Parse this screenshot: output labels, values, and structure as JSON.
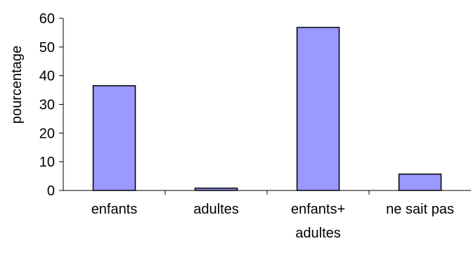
{
  "chart_data": {
    "type": "bar",
    "title": "",
    "xlabel": "",
    "ylabel": "pourcentage",
    "categories": [
      "enfants",
      "adultes",
      "enfants+ adultes",
      "ne sait pas"
    ],
    "values": [
      36.5,
      0.8,
      56.8,
      5.7
    ],
    "ylim": [
      0,
      60
    ],
    "yticks": [
      0,
      10,
      20,
      30,
      40,
      50,
      60
    ],
    "grid": false,
    "legend": "none",
    "colors": {
      "bar_fill": "#9999ff",
      "bar_stroke": "#000000",
      "axis": "#000000"
    }
  }
}
